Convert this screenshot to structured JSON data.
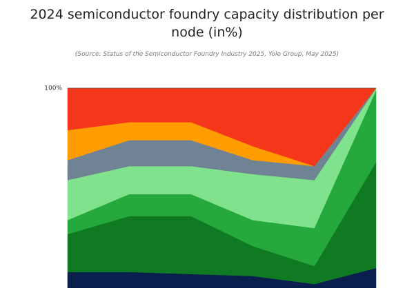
{
  "chart_data": {
    "type": "stacked_area",
    "title": "2024 semiconductor foundry capacity distribution per node (in%)",
    "subtitle": "(Source: Status of the Semiconductor Foundry Industry 2025, Yole Group, May 2025)",
    "categories": [
      null,
      null,
      null,
      null,
      null,
      null
    ],
    "ylim": [
      0,
      100
    ],
    "yticks": [
      {
        "value": 100,
        "label": "100%"
      }
    ],
    "series": [
      {
        "color": "#0b1f4f",
        "values": [
          8,
          8,
          7,
          6,
          2,
          10
        ]
      },
      {
        "color": "#0f7a22",
        "values": [
          19,
          28,
          29,
          15,
          9,
          53
        ]
      },
      {
        "color": "#25a83c",
        "values": [
          7,
          11,
          11,
          13,
          19,
          36
        ]
      },
      {
        "color": "#80e28c",
        "values": [
          20,
          14,
          14,
          23,
          24,
          1
        ]
      },
      {
        "color": "#6f8394",
        "values": [
          10,
          13,
          13,
          7,
          7,
          0
        ]
      },
      {
        "color": "#ff9d00",
        "values": [
          15,
          9,
          9,
          7,
          0,
          0
        ]
      },
      {
        "color": "#f4361b",
        "values": [
          21,
          17,
          17,
          29,
          39,
          0
        ]
      }
    ]
  }
}
